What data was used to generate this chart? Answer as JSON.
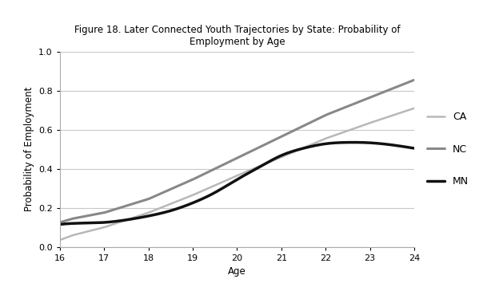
{
  "title": "Figure 18. Later Connected Youth Trajectories by State: Probability of\nEmployment by Age",
  "xlabel": "Age",
  "ylabel": "Probability of Employment",
  "xlim": [
    16,
    24
  ],
  "ylim": [
    0,
    1
  ],
  "xticks": [
    16,
    17,
    18,
    19,
    20,
    21,
    22,
    23,
    24
  ],
  "yticks": [
    0,
    0.2,
    0.4,
    0.6,
    0.8,
    1.0
  ],
  "CA": {
    "ages": [
      16,
      16.3,
      17,
      18,
      19,
      20,
      21,
      22,
      23,
      24
    ],
    "probs": [
      0.035,
      0.06,
      0.1,
      0.175,
      0.265,
      0.365,
      0.46,
      0.555,
      0.635,
      0.71
    ],
    "color": "#b8b8b8",
    "linewidth": 1.8,
    "label": "CA"
  },
  "NC": {
    "ages": [
      16,
      16.3,
      17,
      18,
      19,
      20,
      21,
      22,
      23,
      24
    ],
    "probs": [
      0.125,
      0.145,
      0.175,
      0.245,
      0.345,
      0.455,
      0.565,
      0.675,
      0.765,
      0.855
    ],
    "color": "#888888",
    "linewidth": 2.2,
    "label": "NC"
  },
  "MN": {
    "ages": [
      16,
      16.3,
      17,
      17.5,
      18,
      18.5,
      19,
      19.5,
      20,
      20.5,
      21,
      21.5,
      22,
      22.5,
      23,
      23.5,
      24
    ],
    "probs": [
      0.115,
      0.12,
      0.125,
      0.138,
      0.158,
      0.185,
      0.225,
      0.278,
      0.345,
      0.408,
      0.468,
      0.505,
      0.528,
      0.535,
      0.533,
      0.522,
      0.505
    ],
    "color": "#111111",
    "linewidth": 2.5,
    "label": "MN"
  },
  "background_color": "#ffffff",
  "grid_color": "#c8c8c8",
  "title_fontsize": 8.5,
  "axis_label_fontsize": 8.5,
  "tick_fontsize": 8,
  "legend_fontsize": 9
}
